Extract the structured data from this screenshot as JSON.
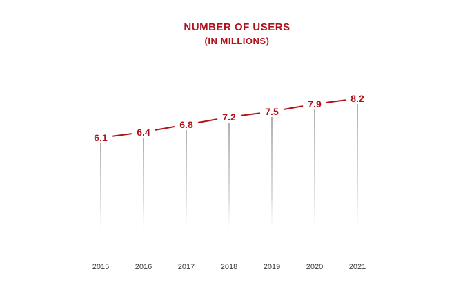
{
  "chart_data": {
    "type": "line",
    "title": "NUMBER  OF USERS",
    "subtitle": "(IN MILLIONS)",
    "xlabel": "",
    "ylabel": "",
    "grid": false,
    "legend": "none",
    "categories": [
      "2015",
      "2016",
      "2017",
      "2018",
      "2019",
      "2020",
      "2021"
    ],
    "series": [
      {
        "name": "Number of users (in millions)",
        "values": [
          6.1,
          6.4,
          6.8,
          7.2,
          7.5,
          7.9,
          8.2
        ],
        "labels": [
          "6.1",
          "6.4",
          "6.8",
          "7.2",
          "7.5",
          "7.9",
          "8.2"
        ]
      }
    ],
    "ylim": [
      0,
      8.5
    ]
  },
  "colors": {
    "accent": "#b0121b",
    "drop_line": "#555555",
    "tick_text": "#3a3a3a",
    "background": "#ffffff"
  }
}
